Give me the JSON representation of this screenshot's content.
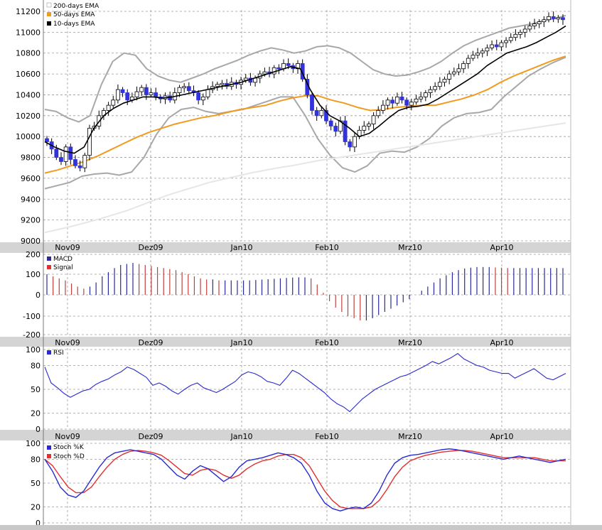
{
  "colors": {
    "background": "#ffffff",
    "sep_band": "#d4d4d4",
    "grid": "#9a9a9a",
    "candle_up": "#ffffff",
    "candle_down": "#3333dd",
    "ema200": "#e6e6e6",
    "ema50": "#f29a1d",
    "ema10": "#000000",
    "bollinger": "#a8a8a8",
    "macd": "#2a2a9a",
    "macd_neg": "#c04040",
    "signal": "#e03030",
    "rsi": "#2a2ad0",
    "stoch_k": "#2a2ad0",
    "stoch_d": "#e03030"
  },
  "month_labels": [
    "Nov09",
    "Dez09",
    "Jan10",
    "Feb10",
    "Mrz10",
    "Apr10"
  ],
  "chart_data": [
    {
      "type": "candlestick",
      "legend": [
        "200-days EMA",
        "50-days EMA",
        "10-days EMA"
      ],
      "ylim": [
        9000,
        11200
      ],
      "yticks": [
        9000,
        9200,
        9400,
        9600,
        9800,
        10000,
        10200,
        10400,
        10600,
        10800,
        11000,
        11200
      ],
      "series": [
        {
          "name": "Close",
          "values": [
            9950,
            9880,
            9800,
            9760,
            9900,
            9780,
            9720,
            9700,
            9820,
            10080,
            10100,
            10200,
            10250,
            10300,
            10350,
            10450,
            10420,
            10350,
            10380,
            10430,
            10470,
            10400,
            10420,
            10380,
            10360,
            10390,
            10350,
            10420,
            10470,
            10480,
            10440,
            10420,
            10350,
            10380,
            10450,
            10480,
            10500,
            10510,
            10480,
            10520,
            10500,
            10540,
            10560,
            10520,
            10560,
            10600,
            10620,
            10600,
            10660,
            10650,
            10700,
            10680,
            10650,
            10700,
            10550,
            10400,
            10250,
            10200,
            10250,
            10150,
            10100,
            10050,
            10150,
            9950,
            9900,
            10000,
            10060,
            10100,
            10120,
            10200,
            10250,
            10300,
            10350,
            10320,
            10380,
            10350,
            10300,
            10330,
            10360,
            10380,
            10420,
            10450,
            10480,
            10520,
            10550,
            10600,
            10620,
            10650,
            10700,
            10750,
            10780,
            10800,
            10820,
            10850,
            10880,
            10860,
            10900,
            10920,
            10950,
            10980,
            11000,
            11030,
            11060,
            11080,
            11100,
            11120,
            11150,
            11130,
            11140,
            11120
          ]
        },
        {
          "name": "200-days EMA",
          "values": [
            9080,
            9110,
            9140,
            9175,
            9210,
            9250,
            9290,
            9340,
            9390,
            9440,
            9480,
            9520,
            9560,
            9590,
            9620,
            9650,
            9675,
            9700,
            9720,
            9745,
            9770,
            9790,
            9810,
            9830,
            9850,
            9870,
            9890,
            9910,
            9930,
            9950,
            9970,
            9990,
            10010,
            10030,
            10050,
            10070,
            10090,
            10110,
            10130
          ]
        },
        {
          "name": "50-days EMA",
          "values": [
            9650,
            9680,
            9720,
            9760,
            9810,
            9870,
            9930,
            9990,
            10040,
            10080,
            10120,
            10150,
            10180,
            10200,
            10230,
            10260,
            10280,
            10300,
            10340,
            10370,
            10390,
            10390,
            10350,
            10320,
            10280,
            10250,
            10260,
            10280,
            10290,
            10300,
            10300,
            10330,
            10360,
            10400,
            10450,
            10520,
            10580,
            10630,
            10680,
            10730,
            10770
          ]
        },
        {
          "name": "10-days EMA",
          "values": [
            9950,
            9900,
            9860,
            9840,
            9900,
            10080,
            10200,
            10270,
            10320,
            10350,
            10380,
            10380,
            10370,
            10380,
            10400,
            10420,
            10440,
            10460,
            10480,
            10500,
            10520,
            10550,
            10580,
            10610,
            10640,
            10670,
            10650,
            10450,
            10300,
            10200,
            10150,
            10080,
            10000,
            10030,
            10100,
            10180,
            10250,
            10280,
            10290,
            10310,
            10360,
            10420,
            10480,
            10540,
            10600,
            10680,
            10740,
            10800,
            10830,
            10860,
            10900,
            10950,
            11000,
            11060
          ]
        },
        {
          "name": "Bollinger Upper",
          "values": [
            10260,
            10240,
            10180,
            10140,
            10200,
            10500,
            10720,
            10800,
            10780,
            10650,
            10580,
            10540,
            10520,
            10560,
            10600,
            10650,
            10690,
            10730,
            10780,
            10820,
            10850,
            10830,
            10800,
            10820,
            10860,
            10870,
            10850,
            10800,
            10720,
            10640,
            10600,
            10580,
            10590,
            10620,
            10660,
            10720,
            10800,
            10870,
            10920,
            10960,
            11000,
            11040,
            11060,
            11080,
            11110,
            11130,
            11160
          ]
        },
        {
          "name": "Bollinger Lower",
          "values": [
            9500,
            9530,
            9560,
            9620,
            9640,
            9650,
            9630,
            9660,
            9800,
            10020,
            10180,
            10260,
            10280,
            10240,
            10220,
            10240,
            10260,
            10300,
            10340,
            10380,
            10380,
            10200,
            9980,
            9820,
            9700,
            9660,
            9720,
            9840,
            9860,
            9850,
            9900,
            9980,
            10100,
            10180,
            10220,
            10230,
            10260,
            10380,
            10480,
            10580,
            10650,
            10710,
            10760
          ]
        }
      ]
    },
    {
      "type": "bar",
      "legend": [
        "MACD",
        "Signal"
      ],
      "ylim": [
        -200,
        150
      ],
      "yticks": [
        -200,
        -100,
        0,
        100,
        200
      ],
      "ytick_labels": [
        "-200",
        "-100",
        "0",
        "100",
        "200"
      ],
      "series": [
        {
          "name": "MACD",
          "values": [
            100,
            90,
            80,
            70,
            55,
            40,
            30,
            40,
            60,
            90,
            110,
            130,
            145,
            150,
            155,
            150,
            145,
            140,
            135,
            130,
            125,
            120,
            110,
            100,
            90,
            80,
            75,
            75,
            70,
            70,
            70,
            70,
            70,
            70,
            72,
            74,
            76,
            78,
            80,
            82,
            84,
            85,
            85,
            80,
            50,
            10,
            -30,
            -60,
            -80,
            -100,
            -110,
            -120,
            -120,
            -110,
            -95,
            -80,
            -65,
            -50,
            -35,
            -20,
            0,
            20,
            40,
            60,
            80,
            95,
            110,
            120,
            128,
            132,
            135,
            135,
            135,
            133,
            132,
            130,
            130,
            130,
            130,
            130,
            130,
            130,
            130,
            130,
            130
          ]
        }
      ]
    },
    {
      "type": "line",
      "legend": [
        "RSI"
      ],
      "ylim": [
        0,
        100
      ],
      "yticks": [
        0,
        20,
        50,
        80,
        100
      ],
      "series": [
        {
          "name": "RSI",
          "values": [
            78,
            58,
            52,
            45,
            40,
            44,
            48,
            50,
            56,
            60,
            63,
            68,
            72,
            78,
            75,
            70,
            65,
            55,
            58,
            54,
            48,
            44,
            50,
            55,
            58,
            52,
            49,
            46,
            50,
            55,
            60,
            68,
            72,
            70,
            66,
            60,
            58,
            55,
            64,
            74,
            70,
            64,
            58,
            52,
            46,
            38,
            32,
            28,
            22,
            30,
            38,
            44,
            50,
            54,
            58,
            62,
            66,
            68,
            72,
            76,
            80,
            85,
            82,
            86,
            90,
            95,
            88,
            84,
            80,
            78,
            74,
            72,
            70,
            70,
            64,
            68,
            72,
            76,
            70,
            64,
            62,
            66,
            70
          ]
        }
      ]
    },
    {
      "type": "line",
      "legend": [
        "Stoch %K",
        "Stoch %D"
      ],
      "ylim": [
        0,
        100
      ],
      "yticks": [
        0,
        20,
        50,
        80,
        100
      ],
      "series": [
        {
          "name": "Stoch %K",
          "values": [
            80,
            65,
            45,
            35,
            32,
            40,
            55,
            70,
            82,
            88,
            90,
            92,
            90,
            88,
            86,
            80,
            70,
            60,
            55,
            65,
            72,
            68,
            60,
            52,
            58,
            70,
            78,
            80,
            82,
            85,
            88,
            86,
            82,
            75,
            60,
            40,
            25,
            18,
            15,
            18,
            20,
            18,
            25,
            40,
            60,
            75,
            82,
            85,
            86,
            88,
            90,
            92,
            93,
            92,
            90,
            88,
            86,
            84,
            82,
            80,
            82,
            84,
            82,
            80,
            78,
            76,
            78,
            80
          ]
        },
        {
          "name": "Stoch %D",
          "values": [
            80,
            72,
            58,
            45,
            38,
            38,
            45,
            58,
            70,
            80,
            86,
            90,
            91,
            90,
            88,
            85,
            78,
            70,
            62,
            60,
            66,
            68,
            66,
            60,
            56,
            60,
            68,
            74,
            78,
            80,
            84,
            86,
            86,
            82,
            72,
            56,
            40,
            28,
            20,
            18,
            18,
            18,
            20,
            28,
            42,
            58,
            70,
            78,
            82,
            85,
            87,
            89,
            90,
            91,
            91,
            90,
            88,
            86,
            84,
            82,
            82,
            82,
            82,
            82,
            80,
            78,
            78,
            78
          ]
        }
      ]
    }
  ]
}
